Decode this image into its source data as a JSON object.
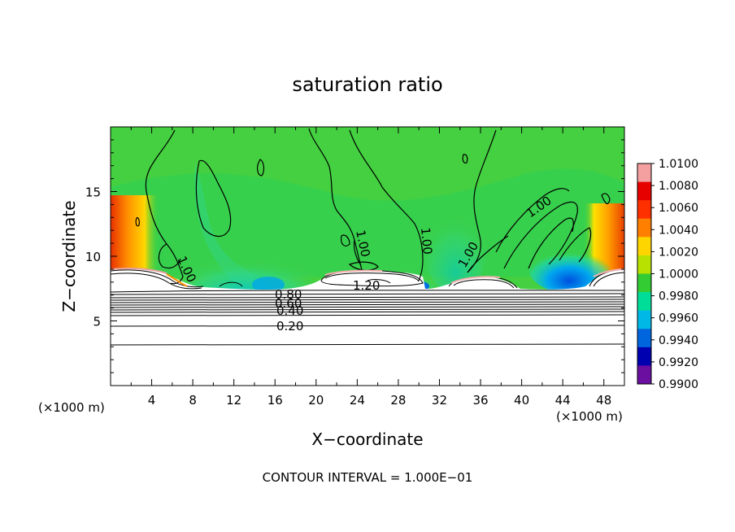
{
  "chart_data": {
    "type": "heatmap",
    "title": "saturation ratio",
    "xlabel": "X−coordinate",
    "ylabel": "Z−coordinate",
    "x_unit_left": "(×1000 m)",
    "x_unit_right": "(×1000 m)",
    "xlim": [
      0,
      50
    ],
    "ylim": [
      0,
      20
    ],
    "xticks": [
      4,
      8,
      12,
      16,
      20,
      24,
      28,
      32,
      36,
      40,
      44,
      48
    ],
    "yticks": [
      5,
      10,
      15
    ],
    "footer": "CONTOUR INTERVAL = 1.000E−01",
    "colorbar": {
      "levels": [
        "1.0100",
        "1.0080",
        "1.0060",
        "1.0040",
        "1.0020",
        "1.0000",
        "0.9980",
        "0.9960",
        "0.9940",
        "0.9920",
        "0.9900"
      ],
      "colors": [
        "#f4a0a0",
        "#e60000",
        "#ff3000",
        "#ff8000",
        "#ffd500",
        "#b8e000",
        "#33cc33",
        "#00dd99",
        "#00b8e6",
        "#0066dd",
        "#0000b0",
        "#6a0fa0"
      ]
    },
    "contour_labels": [
      "1.00",
      "1.00",
      "1.00",
      "1.00",
      "1.00",
      "1.20",
      "0.80",
      "0.60",
      "0.40",
      "0.20"
    ],
    "contour_label_values": [
      1.0,
      1.0,
      1.0,
      1.0,
      1.0,
      1.2,
      0.8,
      0.6,
      0.4,
      0.2
    ]
  }
}
